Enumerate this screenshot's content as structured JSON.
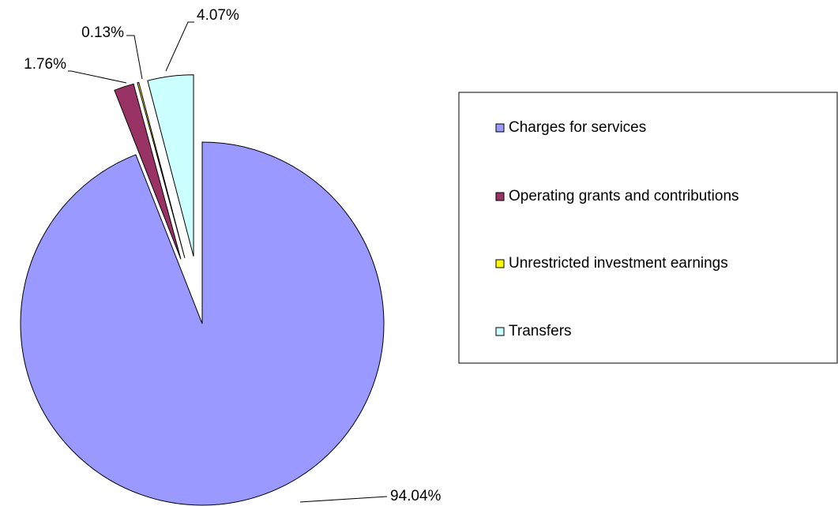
{
  "chart_data": {
    "type": "pie",
    "categories": [
      "Charges for services",
      "Operating grants and contributions",
      "Unrestricted investment earnings",
      "Transfers"
    ],
    "values": [
      94.04,
      1.76,
      0.13,
      4.07
    ],
    "value_labels": [
      "94.04%",
      "1.76%",
      "0.13%",
      "4.07%"
    ],
    "colors": [
      "#9999ff",
      "#993366",
      "#ffff00",
      "#ccffff"
    ],
    "legend": "right"
  }
}
